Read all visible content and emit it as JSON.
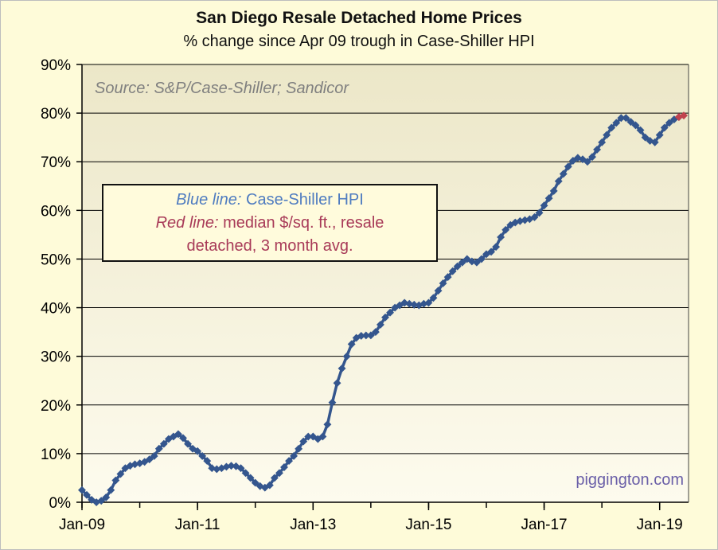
{
  "chart_data": {
    "type": "line",
    "title": "San Diego Resale Detached Home Prices",
    "subtitle": "% change since Apr 09 trough in Case-Shiller HPI",
    "source": "Source: S&P/Case-Shiller; Sandicor",
    "watermark": "piggington.com",
    "xlabel": "",
    "ylabel": "",
    "x_ticks": [
      "Jan-09",
      "Jan-11",
      "Jan-13",
      "Jan-15",
      "Jan-17",
      "Jan-19"
    ],
    "y_ticks": [
      "0%",
      "10%",
      "20%",
      "30%",
      "40%",
      "50%",
      "60%",
      "70%",
      "80%",
      "90%"
    ],
    "ylim": [
      0,
      90
    ],
    "xlim": [
      "Jan-09",
      "Jul-19"
    ],
    "grid": true,
    "legend_note": {
      "line1_italic": "Blue line:",
      "line1_text": "Case-Shiller HPI",
      "line2_italic": "Red line:",
      "line2_text": "median $/sq. ft., resale",
      "line3_text": "detached, 3 month avg."
    },
    "colors": {
      "plot_bg_top": "#ece7c8",
      "plot_bg_bottom": "#fdfbee",
      "case_shiller": "#34568e",
      "median": "#c0424e"
    },
    "series": [
      {
        "name": "Case-Shiller HPI",
        "points": [
          [
            "Jan-09",
            2.5
          ],
          [
            "Feb-09",
            1.5
          ],
          [
            "Mar-09",
            0.5
          ],
          [
            "Apr-09",
            0.0
          ],
          [
            "May-09",
            0.3
          ],
          [
            "Jun-09",
            1.0
          ],
          [
            "Jul-09",
            2.5
          ],
          [
            "Aug-09",
            4.5
          ],
          [
            "Sep-09",
            5.8
          ],
          [
            "Oct-09",
            7.0
          ],
          [
            "Nov-09",
            7.5
          ],
          [
            "Dec-09",
            7.8
          ],
          [
            "Jan-10",
            8.0
          ],
          [
            "Feb-10",
            8.3
          ],
          [
            "Mar-10",
            8.8
          ],
          [
            "Apr-10",
            9.5
          ],
          [
            "May-10",
            11.0
          ],
          [
            "Jun-10",
            12.0
          ],
          [
            "Jul-10",
            13.0
          ],
          [
            "Aug-10",
            13.5
          ],
          [
            "Sep-10",
            14.0
          ],
          [
            "Oct-10",
            13.2
          ],
          [
            "Nov-10",
            12.0
          ],
          [
            "Dec-10",
            11.0
          ],
          [
            "Jan-11",
            10.5
          ],
          [
            "Feb-11",
            9.5
          ],
          [
            "Mar-11",
            8.5
          ],
          [
            "Apr-11",
            7.0
          ],
          [
            "May-11",
            6.8
          ],
          [
            "Jun-11",
            7.0
          ],
          [
            "Jul-11",
            7.3
          ],
          [
            "Aug-11",
            7.5
          ],
          [
            "Sep-11",
            7.4
          ],
          [
            "Oct-11",
            7.0
          ],
          [
            "Nov-11",
            6.0
          ],
          [
            "Dec-11",
            5.0
          ],
          [
            "Jan-12",
            4.0
          ],
          [
            "Feb-12",
            3.3
          ],
          [
            "Mar-12",
            3.0
          ],
          [
            "Apr-12",
            3.5
          ],
          [
            "May-12",
            5.0
          ],
          [
            "Jun-12",
            6.0
          ],
          [
            "Jul-12",
            7.2
          ],
          [
            "Aug-12",
            8.5
          ],
          [
            "Sep-12",
            9.5
          ],
          [
            "Oct-12",
            11.0
          ],
          [
            "Nov-12",
            12.5
          ],
          [
            "Dec-12",
            13.5
          ],
          [
            "Jan-13",
            13.5
          ],
          [
            "Feb-13",
            13.0
          ],
          [
            "Mar-13",
            13.5
          ],
          [
            "Apr-13",
            16.0
          ],
          [
            "May-13",
            20.5
          ],
          [
            "Jun-13",
            24.5
          ],
          [
            "Jul-13",
            27.5
          ],
          [
            "Aug-13",
            30.0
          ],
          [
            "Sep-13",
            32.5
          ],
          [
            "Oct-13",
            33.8
          ],
          [
            "Nov-13",
            34.2
          ],
          [
            "Dec-13",
            34.3
          ],
          [
            "Jan-14",
            34.3
          ],
          [
            "Feb-14",
            35.0
          ],
          [
            "Mar-14",
            36.5
          ],
          [
            "Apr-14",
            38.0
          ],
          [
            "May-14",
            39.0
          ],
          [
            "Jun-14",
            40.0
          ],
          [
            "Jul-14",
            40.5
          ],
          [
            "Aug-14",
            41.0
          ],
          [
            "Sep-14",
            40.8
          ],
          [
            "Oct-14",
            40.6
          ],
          [
            "Nov-14",
            40.5
          ],
          [
            "Dec-14",
            40.8
          ],
          [
            "Jan-15",
            41.0
          ],
          [
            "Feb-15",
            42.0
          ],
          [
            "Mar-15",
            43.5
          ],
          [
            "Apr-15",
            45.0
          ],
          [
            "May-15",
            46.3
          ],
          [
            "Jun-15",
            47.5
          ],
          [
            "Jul-15",
            48.5
          ],
          [
            "Aug-15",
            49.3
          ],
          [
            "Sep-15",
            50.0
          ],
          [
            "Oct-15",
            49.5
          ],
          [
            "Nov-15",
            49.3
          ],
          [
            "Dec-15",
            50.0
          ],
          [
            "Jan-16",
            51.0
          ],
          [
            "Feb-16",
            51.5
          ],
          [
            "Mar-16",
            52.5
          ],
          [
            "Apr-16",
            54.5
          ],
          [
            "May-16",
            56.0
          ],
          [
            "Jun-16",
            57.0
          ],
          [
            "Jul-16",
            57.5
          ],
          [
            "Aug-16",
            57.8
          ],
          [
            "Sep-16",
            58.0
          ],
          [
            "Oct-16",
            58.2
          ],
          [
            "Nov-16",
            58.6
          ],
          [
            "Dec-16",
            59.5
          ],
          [
            "Jan-17",
            61.0
          ],
          [
            "Feb-17",
            62.5
          ],
          [
            "Mar-17",
            64.0
          ],
          [
            "Apr-17",
            66.0
          ],
          [
            "May-17",
            67.5
          ],
          [
            "Jun-17",
            69.0
          ],
          [
            "Jul-17",
            70.2
          ],
          [
            "Aug-17",
            70.8
          ],
          [
            "Sep-17",
            70.5
          ],
          [
            "Oct-17",
            70.0
          ],
          [
            "Nov-17",
            71.0
          ],
          [
            "Dec-17",
            72.5
          ],
          [
            "Jan-18",
            74.0
          ],
          [
            "Feb-18",
            75.5
          ],
          [
            "Mar-18",
            77.0
          ],
          [
            "Apr-18",
            78.0
          ],
          [
            "May-18",
            79.0
          ],
          [
            "Jun-18",
            79.0
          ],
          [
            "Jul-18",
            78.2
          ],
          [
            "Aug-18",
            77.5
          ],
          [
            "Sep-18",
            76.5
          ],
          [
            "Oct-18",
            75.0
          ],
          [
            "Nov-18",
            74.3
          ],
          [
            "Dec-18",
            74.0
          ],
          [
            "Jan-19",
            75.5
          ],
          [
            "Feb-19",
            77.0
          ],
          [
            "Mar-19",
            78.0
          ],
          [
            "Apr-19",
            78.7
          ],
          [
            "May-19",
            79.2
          ]
        ]
      },
      {
        "name": "median $/sq. ft., resale detached, 3 month avg.",
        "points": [
          [
            "May-19",
            79.2
          ],
          [
            "Jun-19",
            79.5
          ]
        ]
      }
    ]
  }
}
